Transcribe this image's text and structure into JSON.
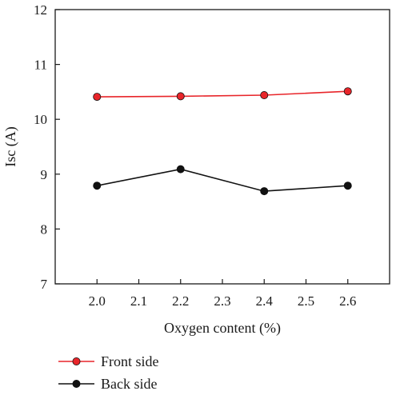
{
  "chart_data": {
    "type": "line",
    "xlabel": "Oxygen content (%)",
    "ylabel": "Isc (A)",
    "xlim": [
      1.9,
      2.7
    ],
    "ylim": [
      7,
      12
    ],
    "x_ticks": [
      "2.0",
      "2.1",
      "2.2",
      "2.3",
      "2.4",
      "2.5",
      "2.6"
    ],
    "y_ticks": [
      "7",
      "8",
      "9",
      "10",
      "11",
      "12"
    ],
    "x": [
      2.0,
      2.2,
      2.4,
      2.6
    ],
    "grid": false,
    "legend_position": "bottom",
    "series": [
      {
        "name": "Front side",
        "color": "#e8252a",
        "values": [
          10.41,
          10.42,
          10.44,
          10.51
        ]
      },
      {
        "name": "Back side",
        "color": "#111111",
        "values": [
          8.79,
          9.09,
          8.69,
          8.79
        ]
      }
    ]
  }
}
